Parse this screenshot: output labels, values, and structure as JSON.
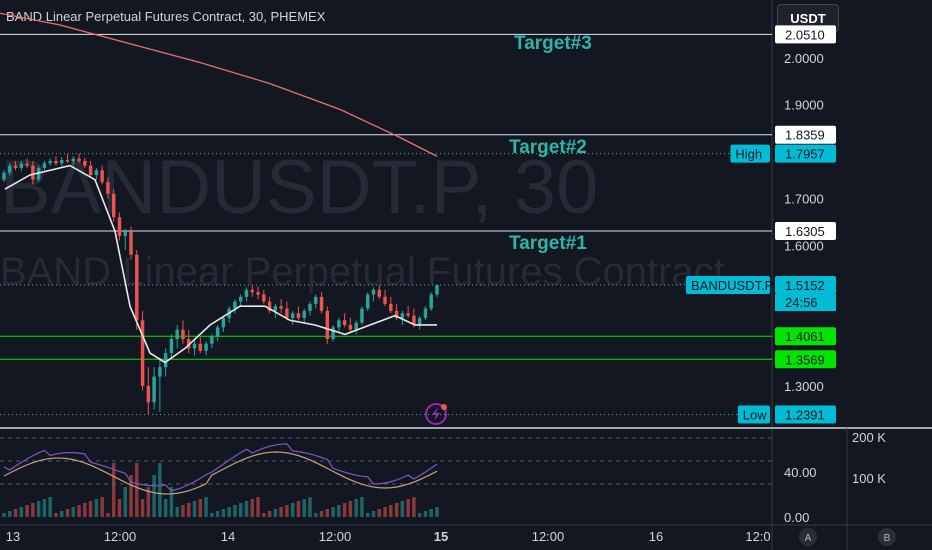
{
  "header": {
    "title": "BAND Linear Perpetual Futures Contract, 30, PHEMEX"
  },
  "currency_button": "USDT",
  "watermark": {
    "symbol": "BANDUSDT.P, 30",
    "description": "BAND Linear Perpetual Futures Contract"
  },
  "colors": {
    "background": "#131722",
    "up_candle": "#26a69a",
    "down_candle": "#ef5350",
    "target_text": "#2fb5a7",
    "green_level": "#00e600",
    "price_tag": "#00bcd4",
    "ma_line": "#e57368"
  },
  "annotations": {
    "target3": "Target#3",
    "target2": "Target#2",
    "target1": "Target#1"
  },
  "chart_data": {
    "type": "candlestick",
    "price_axis": {
      "range": [
        1.23,
        2.08
      ],
      "ticks": [
        "2.0000",
        "1.9000",
        "1.7000",
        "1.6000",
        "1.3000"
      ],
      "tick_values": [
        2.0,
        1.9,
        1.7,
        1.6,
        1.3
      ]
    },
    "time_axis": {
      "labels": [
        "13",
        "12:00",
        "14",
        "12:00",
        "15",
        "12:00",
        "16",
        "12:0"
      ],
      "positions": [
        13,
        120,
        228,
        335,
        441,
        548,
        656,
        758
      ]
    },
    "levels": [
      {
        "name": "target3",
        "value": 2.05,
        "color": "white",
        "tag": "2.0510"
      },
      {
        "name": "target2",
        "value": 1.8359,
        "color": "white",
        "tag": "1.8359"
      },
      {
        "name": "high",
        "value": 1.7957,
        "color": "dotted",
        "tag": "1.7957",
        "label": "High"
      },
      {
        "name": "target1",
        "value": 1.6305,
        "color": "white",
        "tag": "1.6305"
      },
      {
        "name": "last",
        "value": 1.5152,
        "color": "dotted",
        "tag": "1.5152",
        "label": "BANDUSDT.P",
        "countdown": "24:56"
      },
      {
        "name": "support1",
        "value": 1.4061,
        "color": "green",
        "tag": "1.4061"
      },
      {
        "name": "support2",
        "value": 1.3569,
        "color": "green",
        "tag": "1.3569"
      },
      {
        "name": "low",
        "value": 1.2391,
        "color": "dotted",
        "tag": "1.2391",
        "label": "Low"
      }
    ],
    "candles": [
      [
        1.74,
        1.7602,
        1.735,
        1.755
      ],
      [
        1.755,
        1.775,
        1.749,
        1.77
      ],
      [
        1.77,
        1.78,
        1.76,
        1.765
      ],
      [
        1.765,
        1.78,
        1.758,
        1.774
      ],
      [
        1.774,
        1.785,
        1.765,
        1.77
      ],
      [
        1.77,
        1.78,
        1.73,
        1.74
      ],
      [
        1.74,
        1.77,
        1.735,
        1.765
      ],
      [
        1.765,
        1.78,
        1.76,
        1.775
      ],
      [
        1.775,
        1.785,
        1.77,
        1.78
      ],
      [
        1.78,
        1.79,
        1.77,
        1.775
      ],
      [
        1.775,
        1.788,
        1.768,
        1.782
      ],
      [
        1.782,
        1.795,
        1.775,
        1.779
      ],
      [
        1.779,
        1.79,
        1.77,
        1.785
      ],
      [
        1.785,
        1.7957,
        1.775,
        1.78
      ],
      [
        1.78,
        1.787,
        1.765,
        1.77
      ],
      [
        1.77,
        1.78,
        1.745,
        1.75
      ],
      [
        1.75,
        1.765,
        1.74,
        1.76
      ],
      [
        1.76,
        1.77,
        1.73,
        1.735
      ],
      [
        1.735,
        1.745,
        1.7,
        1.71
      ],
      [
        1.71,
        1.72,
        1.65,
        1.66
      ],
      [
        1.66,
        1.67,
        1.61,
        1.62
      ],
      [
        1.62,
        1.635,
        1.59,
        1.63
      ],
      [
        1.63,
        1.64,
        1.57,
        1.58
      ],
      [
        1.58,
        1.59,
        1.42,
        1.44
      ],
      [
        1.44,
        1.46,
        1.29,
        1.3
      ],
      [
        1.3,
        1.34,
        1.2391,
        1.265
      ],
      [
        1.265,
        1.34,
        1.25,
        1.32
      ],
      [
        1.32,
        1.36,
        1.245,
        1.34
      ],
      [
        1.34,
        1.38,
        1.32,
        1.37
      ],
      [
        1.37,
        1.41,
        1.36,
        1.4
      ],
      [
        1.4,
        1.43,
        1.38,
        1.42
      ],
      [
        1.42,
        1.44,
        1.39,
        1.4
      ],
      [
        1.4,
        1.42,
        1.37,
        1.38
      ],
      [
        1.38,
        1.4,
        1.365,
        1.39
      ],
      [
        1.39,
        1.405,
        1.37,
        1.375
      ],
      [
        1.375,
        1.395,
        1.365,
        1.39
      ],
      [
        1.39,
        1.41,
        1.38,
        1.405
      ],
      [
        1.405,
        1.43,
        1.395,
        1.425
      ],
      [
        1.425,
        1.45,
        1.415,
        1.445
      ],
      [
        1.445,
        1.47,
        1.435,
        1.465
      ],
      [
        1.465,
        1.485,
        1.455,
        1.48
      ],
      [
        1.48,
        1.495,
        1.47,
        1.49
      ],
      [
        1.49,
        1.51,
        1.48,
        1.505
      ],
      [
        1.505,
        1.515,
        1.49,
        1.5
      ],
      [
        1.5,
        1.512,
        1.485,
        1.495
      ],
      [
        1.495,
        1.505,
        1.475,
        1.48
      ],
      [
        1.48,
        1.49,
        1.455,
        1.46
      ],
      [
        1.46,
        1.475,
        1.445,
        1.47
      ],
      [
        1.47,
        1.485,
        1.455,
        1.465
      ],
      [
        1.465,
        1.48,
        1.44,
        1.445
      ],
      [
        1.445,
        1.46,
        1.43,
        1.455
      ],
      [
        1.455,
        1.47,
        1.44,
        1.445
      ],
      [
        1.445,
        1.465,
        1.435,
        1.46
      ],
      [
        1.46,
        1.48,
        1.45,
        1.475
      ],
      [
        1.475,
        1.495,
        1.465,
        1.49
      ],
      [
        1.49,
        1.5,
        1.455,
        1.46
      ],
      [
        1.46,
        1.47,
        1.39,
        1.4
      ],
      [
        1.4,
        1.43,
        1.395,
        1.425
      ],
      [
        1.425,
        1.445,
        1.415,
        1.44
      ],
      [
        1.44,
        1.455,
        1.425,
        1.43
      ],
      [
        1.43,
        1.445,
        1.415,
        1.42
      ],
      [
        1.42,
        1.44,
        1.41,
        1.435
      ],
      [
        1.435,
        1.47,
        1.43,
        1.465
      ],
      [
        1.465,
        1.5,
        1.46,
        1.495
      ],
      [
        1.495,
        1.51,
        1.48,
        1.505
      ],
      [
        1.505,
        1.515,
        1.485,
        1.49
      ],
      [
        1.49,
        1.505,
        1.47,
        1.475
      ],
      [
        1.475,
        1.49,
        1.455,
        1.46
      ],
      [
        1.46,
        1.475,
        1.44,
        1.445
      ],
      [
        1.445,
        1.46,
        1.43,
        1.455
      ],
      [
        1.455,
        1.47,
        1.445,
        1.45
      ],
      [
        1.45,
        1.465,
        1.425,
        1.43
      ],
      [
        1.43,
        1.45,
        1.42,
        1.445
      ],
      [
        1.445,
        1.47,
        1.44,
        1.465
      ],
      [
        1.465,
        1.5,
        1.46,
        1.495
      ],
      [
        1.495,
        1.516,
        1.49,
        1.5152
      ]
    ],
    "moving_average_red": [
      [
        0,
        2.095
      ],
      [
        60,
        2.07
      ],
      [
        130,
        2.03
      ],
      [
        200,
        1.99
      ],
      [
        270,
        1.945
      ],
      [
        340,
        1.89
      ],
      [
        400,
        1.83
      ],
      [
        437,
        1.79
      ]
    ],
    "moving_average_white": [
      [
        5,
        1.72
      ],
      [
        30,
        1.75
      ],
      [
        70,
        1.77
      ],
      [
        95,
        1.74
      ],
      [
        115,
        1.63
      ],
      [
        130,
        1.47
      ],
      [
        150,
        1.37
      ],
      [
        165,
        1.35
      ],
      [
        185,
        1.38
      ],
      [
        210,
        1.43
      ],
      [
        240,
        1.47
      ],
      [
        265,
        1.47
      ],
      [
        290,
        1.44
      ],
      [
        315,
        1.43
      ],
      [
        345,
        1.41
      ],
      [
        370,
        1.43
      ],
      [
        395,
        1.45
      ],
      [
        415,
        1.43
      ],
      [
        437,
        1.43
      ]
    ],
    "lower_pane": {
      "right_axis": [
        "200 K",
        "100 K"
      ],
      "left_axis": [
        "40.00",
        "0.00"
      ]
    },
    "bottom_buttons": [
      "A",
      "B"
    ]
  }
}
